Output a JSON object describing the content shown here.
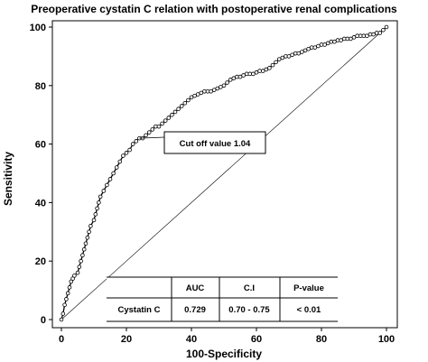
{
  "chart_data": {
    "type": "line",
    "title": "Preoperative cystatin C relation with postoperative renal complications",
    "xlabel": "100-Specificity",
    "ylabel": "Sensitivity",
    "xlim": [
      0,
      100
    ],
    "ylim": [
      0,
      100
    ],
    "x_ticks": [
      "0",
      "20",
      "40",
      "60",
      "80",
      "100"
    ],
    "y_ticks": [
      "0",
      "20",
      "40",
      "60",
      "80",
      "100"
    ],
    "grid": false,
    "series": [
      {
        "type": "line",
        "marker": "circle",
        "points": [
          [
            0,
            0
          ],
          [
            0.5,
            2
          ],
          [
            1,
            5
          ],
          [
            1.5,
            7
          ],
          [
            2,
            9
          ],
          [
            2.5,
            11
          ],
          [
            3,
            13
          ],
          [
            3.5,
            14
          ],
          [
            4,
            15
          ],
          [
            5,
            16
          ],
          [
            5.5,
            18
          ],
          [
            6,
            20
          ],
          [
            6.5,
            22
          ],
          [
            7,
            24
          ],
          [
            7.5,
            26
          ],
          [
            8,
            28
          ],
          [
            8.5,
            30
          ],
          [
            9,
            32
          ],
          [
            10,
            34
          ],
          [
            10.5,
            36
          ],
          [
            11,
            38
          ],
          [
            11.5,
            40
          ],
          [
            12,
            42
          ],
          [
            13,
            44
          ],
          [
            14,
            46
          ],
          [
            15,
            48
          ],
          [
            16,
            50
          ],
          [
            17,
            52
          ],
          [
            18,
            54
          ],
          [
            19,
            56
          ],
          [
            20,
            57
          ],
          [
            21,
            58
          ],
          [
            22,
            60
          ],
          [
            23,
            61
          ],
          [
            24,
            62
          ],
          [
            25,
            62
          ],
          [
            26,
            63
          ],
          [
            27,
            64
          ],
          [
            28,
            65
          ],
          [
            29,
            66
          ],
          [
            30,
            66
          ],
          [
            31,
            67
          ],
          [
            32,
            68
          ],
          [
            33,
            69
          ],
          [
            34,
            70
          ],
          [
            35,
            71
          ],
          [
            36,
            72
          ],
          [
            37,
            73
          ],
          [
            38,
            74
          ],
          [
            39,
            75
          ],
          [
            40,
            76
          ],
          [
            41,
            76.5
          ],
          [
            42,
            77
          ],
          [
            43,
            77.5
          ],
          [
            44,
            78
          ],
          [
            45,
            78
          ],
          [
            46,
            78
          ],
          [
            47,
            78.5
          ],
          [
            48,
            79
          ],
          [
            49,
            79.5
          ],
          [
            50,
            80
          ],
          [
            51,
            81
          ],
          [
            52,
            82
          ],
          [
            53,
            82.5
          ],
          [
            54,
            83
          ],
          [
            55,
            83
          ],
          [
            56,
            83.5
          ],
          [
            57,
            84
          ],
          [
            58,
            84
          ],
          [
            59,
            84
          ],
          [
            60,
            84.5
          ],
          [
            61,
            85
          ],
          [
            62,
            85
          ],
          [
            63,
            85.5
          ],
          [
            64,
            86
          ],
          [
            65,
            87
          ],
          [
            66,
            88
          ],
          [
            67,
            89
          ],
          [
            68,
            89.5
          ],
          [
            69,
            90
          ],
          [
            70,
            90
          ],
          [
            71,
            90.5
          ],
          [
            72,
            91
          ],
          [
            73,
            91
          ],
          [
            74,
            91.5
          ],
          [
            75,
            92
          ],
          [
            76,
            92.5
          ],
          [
            77,
            93
          ],
          [
            78,
            93
          ],
          [
            79,
            93.5
          ],
          [
            80,
            94
          ],
          [
            81,
            94
          ],
          [
            82,
            94.5
          ],
          [
            83,
            95
          ],
          [
            84,
            95
          ],
          [
            85,
            95.5
          ],
          [
            86,
            95.5
          ],
          [
            87,
            96
          ],
          [
            88,
            96
          ],
          [
            89,
            96
          ],
          [
            90,
            96.5
          ],
          [
            91,
            97
          ],
          [
            92,
            97
          ],
          [
            93,
            97
          ],
          [
            94,
            97
          ],
          [
            95,
            97.5
          ],
          [
            96,
            97.5
          ],
          [
            97,
            98
          ],
          [
            98,
            98
          ],
          [
            99,
            99
          ],
          [
            100,
            100
          ]
        ]
      },
      {
        "type": "line",
        "style": "reference-diagonal",
        "points": [
          [
            0,
            0
          ],
          [
            100,
            100
          ]
        ]
      }
    ],
    "annotations": [
      {
        "text": "Cut off value 1.04",
        "x": 24,
        "y": 62
      }
    ],
    "table": {
      "headers": [
        "",
        "AUC",
        "C.I",
        "P-value"
      ],
      "rows": [
        [
          "Cystatin C",
          "0.729",
          "0.70 - 0.75",
          "< 0.01"
        ]
      ]
    }
  }
}
